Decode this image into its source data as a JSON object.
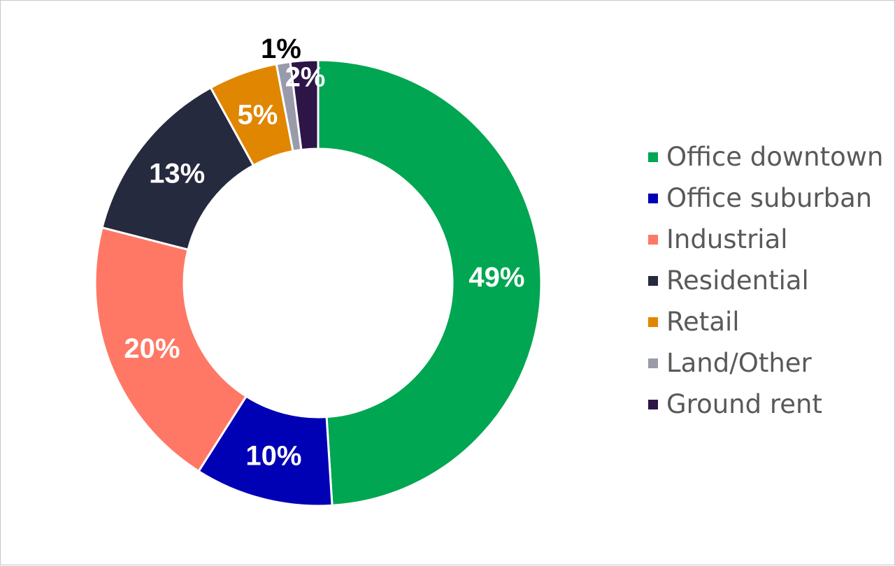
{
  "chart_data": {
    "type": "pie",
    "variant": "donut",
    "legend_position": "right",
    "slices": [
      {
        "label": "Office downtown",
        "value": 49,
        "display": "49%",
        "color": "#00A651",
        "label_color": "#ffffff"
      },
      {
        "label": "Office suburban",
        "value": 10,
        "display": "10%",
        "color": "#0000B4",
        "label_color": "#ffffff"
      },
      {
        "label": "Industrial",
        "value": 20,
        "display": "20%",
        "color": "#FF7866",
        "label_color": "#ffffff"
      },
      {
        "label": "Residential",
        "value": 13,
        "display": "13%",
        "color": "#262A3E",
        "label_color": "#ffffff"
      },
      {
        "label": "Retail",
        "value": 5,
        "display": "5%",
        "color": "#E08600",
        "label_color": "#ffffff"
      },
      {
        "label": "Land/Other",
        "value": 1,
        "display": "1%",
        "color": "#9A9BAA",
        "label_color": "#000000"
      },
      {
        "label": "Ground rent",
        "value": 2,
        "display": "2%",
        "color": "#2D1548",
        "label_color": "#ffffff"
      }
    ]
  }
}
